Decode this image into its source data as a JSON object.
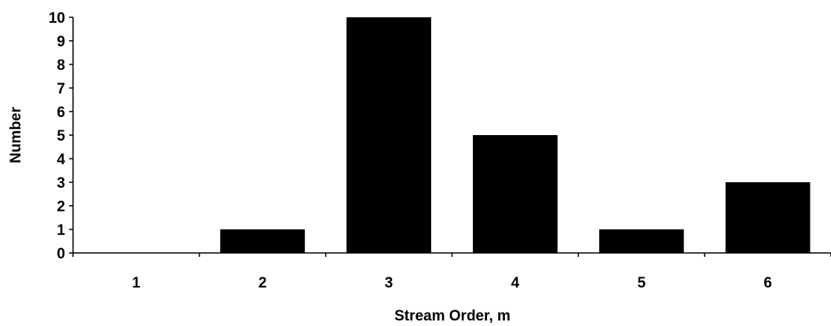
{
  "chart_data": {
    "type": "bar",
    "categories": [
      "1",
      "2",
      "3",
      "4",
      "5",
      "6"
    ],
    "values": [
      0,
      1,
      10,
      5,
      1,
      3
    ],
    "xlabel": "Stream Order, m",
    "ylabel": "Number",
    "ylim": [
      0,
      10
    ],
    "yticks": [
      "0",
      "1",
      "2",
      "3",
      "4",
      "5",
      "6",
      "7",
      "8",
      "9",
      "10"
    ],
    "bar_color": "#000000",
    "grid": false,
    "legend": "none"
  }
}
